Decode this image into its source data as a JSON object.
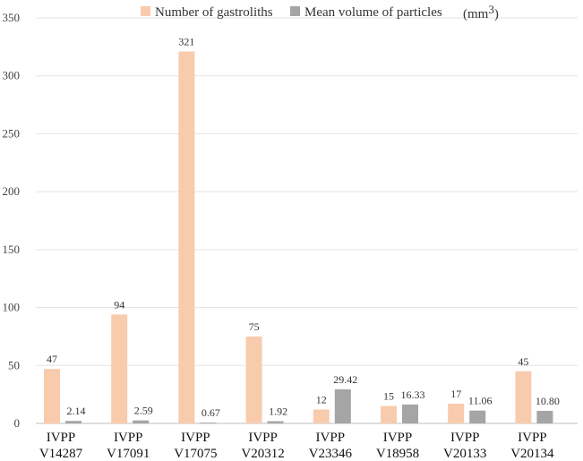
{
  "chart_data": {
    "type": "bar",
    "title": "",
    "xlabel": "",
    "ylabel": "",
    "ylim": [
      0,
      350
    ],
    "yticks": [
      0,
      50,
      100,
      150,
      200,
      250,
      300,
      350
    ],
    "grid": true,
    "legend_position": "top",
    "categories": [
      {
        "line1": "IVPP",
        "line2": "V14287"
      },
      {
        "line1": "IVPP",
        "line2": "V17091"
      },
      {
        "line1": "IVPP",
        "line2": "V17075"
      },
      {
        "line1": "IVPP",
        "line2": "V20312"
      },
      {
        "line1": "IVPP",
        "line2": "V23346"
      },
      {
        "line1": "IVPP",
        "line2": "V18958"
      },
      {
        "line1": "IVPP",
        "line2": "V20133"
      },
      {
        "line1": "IVPP",
        "line2": "V20134"
      }
    ],
    "series": [
      {
        "name": "Number of gastroliths",
        "color": "#f8cbad",
        "values": [
          47,
          94,
          321,
          75,
          12,
          15,
          17,
          45
        ],
        "labels": [
          "47",
          "94",
          "321",
          "75",
          "12",
          "15",
          "17",
          "45"
        ]
      },
      {
        "name": "Mean volume of particles",
        "unit_text": "(mm",
        "unit_sup": "3",
        "unit_close": ")",
        "color": "#a5a5a5",
        "values": [
          2.14,
          2.59,
          0.67,
          1.92,
          29.42,
          16.33,
          11.06,
          10.8
        ],
        "labels": [
          "2.14",
          "2.59",
          "0.67",
          "1.92",
          "29.42",
          "16.33",
          "11.06",
          "10.80"
        ]
      }
    ]
  }
}
